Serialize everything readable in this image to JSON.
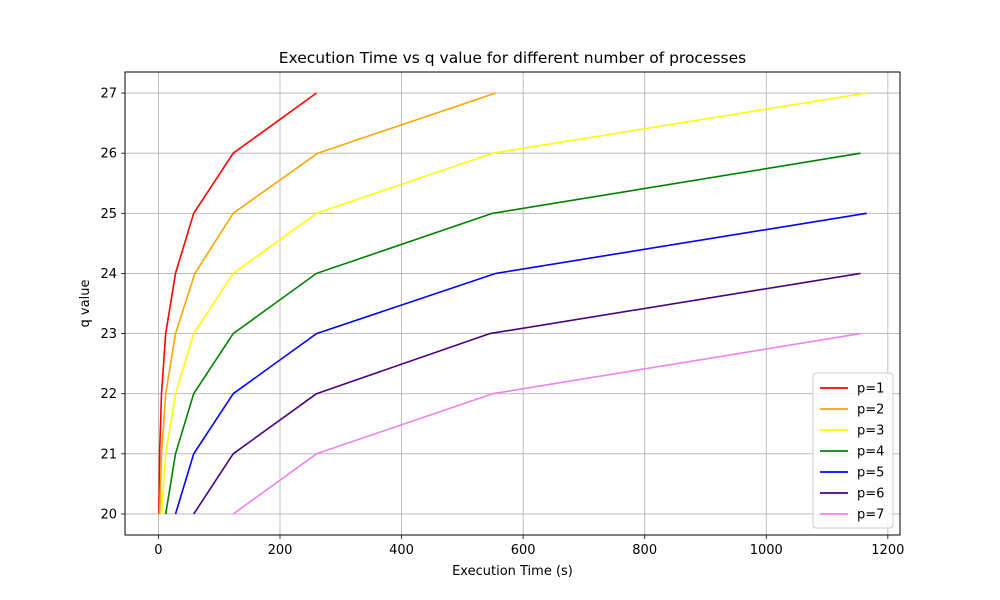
{
  "chart_data": {
    "type": "line",
    "title": "Execution Time vs q value for different number of processes",
    "xlabel": "Execution Time (s)",
    "ylabel": "q value",
    "xlim": [
      -55,
      1220
    ],
    "ylim": [
      19.65,
      27.35
    ],
    "xticks": [
      0,
      200,
      400,
      600,
      800,
      1000,
      1200
    ],
    "yticks": [
      20,
      21,
      22,
      23,
      24,
      25,
      26,
      27
    ],
    "grid": true,
    "legend_position": "lower right",
    "series": [
      {
        "name": "p=1",
        "color": "#ff0000",
        "points": [
          [
            1,
            20
          ],
          [
            2,
            21
          ],
          [
            5,
            22
          ],
          [
            12,
            23
          ],
          [
            28,
            24
          ],
          [
            58,
            25
          ],
          [
            123,
            26
          ],
          [
            260,
            27
          ]
        ]
      },
      {
        "name": "p=2",
        "color": "#ffa500",
        "points": [
          [
            2,
            20
          ],
          [
            5,
            21
          ],
          [
            12,
            22
          ],
          [
            28,
            23
          ],
          [
            60,
            24
          ],
          [
            123,
            25
          ],
          [
            262,
            26
          ],
          [
            555,
            27
          ]
        ]
      },
      {
        "name": "p=3",
        "color": "#ffff00",
        "points": [
          [
            5,
            20
          ],
          [
            12,
            21
          ],
          [
            28,
            22
          ],
          [
            58,
            23
          ],
          [
            123,
            24
          ],
          [
            260,
            25
          ],
          [
            550,
            26
          ],
          [
            1165,
            27
          ]
        ]
      },
      {
        "name": "p=4",
        "color": "#008000",
        "points": [
          [
            12,
            20
          ],
          [
            28,
            21
          ],
          [
            58,
            22
          ],
          [
            123,
            23
          ],
          [
            260,
            24
          ],
          [
            550,
            25
          ],
          [
            1155,
            26
          ]
        ]
      },
      {
        "name": "p=5",
        "color": "#0000ff",
        "points": [
          [
            28,
            20
          ],
          [
            58,
            21
          ],
          [
            123,
            22
          ],
          [
            260,
            23
          ],
          [
            555,
            24
          ],
          [
            1165,
            25
          ]
        ]
      },
      {
        "name": "p=6",
        "color": "#4b0082",
        "points": [
          [
            58,
            20
          ],
          [
            123,
            21
          ],
          [
            260,
            22
          ],
          [
            545,
            23
          ],
          [
            1155,
            24
          ]
        ]
      },
      {
        "name": "p=7",
        "color": "#ee82ee",
        "points": [
          [
            123,
            20
          ],
          [
            260,
            21
          ],
          [
            550,
            22
          ],
          [
            1155,
            23
          ]
        ]
      }
    ]
  }
}
